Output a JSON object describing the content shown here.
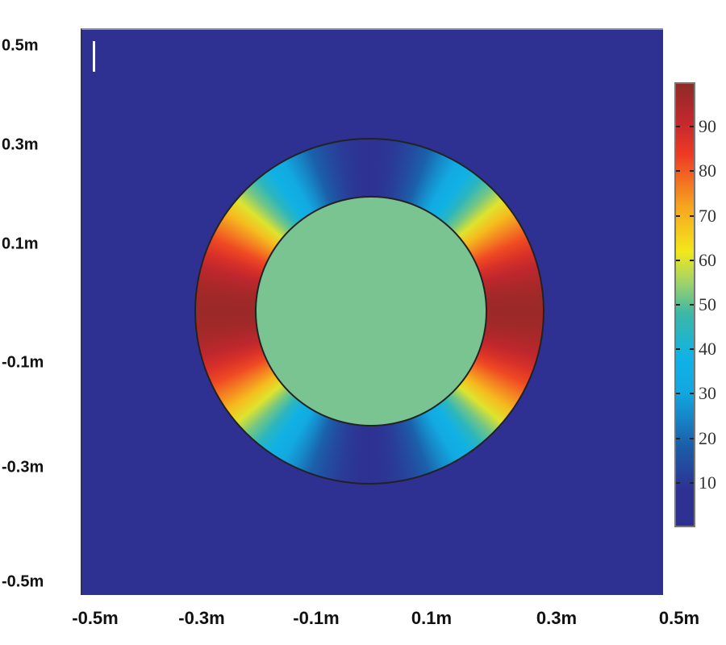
{
  "chart_data": {
    "type": "heatmap",
    "title": "",
    "xlabel": "",
    "ylabel": "",
    "x_ticks": [
      "-0.5m",
      "-0.3m",
      "-0.1m",
      "0.1m",
      "0.3m",
      "0.5m"
    ],
    "y_ticks": [
      "0.5m",
      "0.3m",
      "0.1m",
      "-0.1m",
      "-0.3m",
      "-0.5m"
    ],
    "xlim": [
      -0.5,
      0.5
    ],
    "ylim": [
      -0.5,
      0.5
    ],
    "colorbar": {
      "ticks": [
        "90",
        "80",
        "70",
        "60",
        "50",
        "40",
        "30",
        "20",
        "10"
      ],
      "range": [
        0,
        100
      ],
      "colormap": "jet"
    },
    "regions": [
      {
        "name": "background",
        "value": 5
      },
      {
        "name": "inner disk",
        "radius_m": 0.2,
        "value": 50
      },
      {
        "name": "outer ring",
        "inner_radius_m": 0.2,
        "outer_radius_m": 0.3,
        "value_at_top_bottom": 10,
        "value_at_sides": 98
      }
    ]
  }
}
